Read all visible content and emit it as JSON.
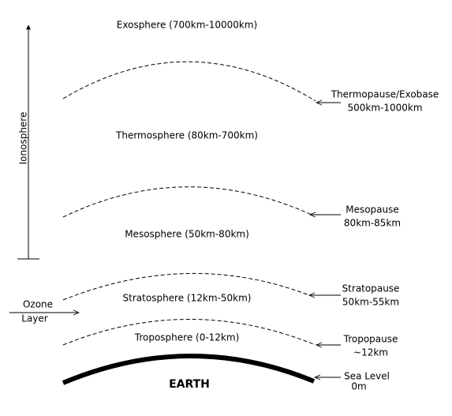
{
  "layers": [
    {
      "label": "Exosphere (700km-10000km)"
    },
    {
      "label": "Thermosphere  (80km-700km)"
    },
    {
      "label": "Mesosphere (50km-80km)"
    },
    {
      "label": "Stratosphere (12km-50km)"
    },
    {
      "label": "Troposphere (0-12km)"
    }
  ],
  "boundaries": [
    {
      "name": "Thermopause/Exobase",
      "range": "500km-1000km"
    },
    {
      "name": "Mesopause",
      "range": "80km-85km"
    },
    {
      "name": "Stratopause",
      "range": "50km-55km"
    },
    {
      "name": "Tropopause",
      "range": "~12km"
    },
    {
      "name": "Sea Level",
      "range": "0m"
    }
  ],
  "ionosphere": "Ionosphere",
  "ozone": [
    "Ozone",
    "Layer"
  ],
  "earth": "EARTH"
}
